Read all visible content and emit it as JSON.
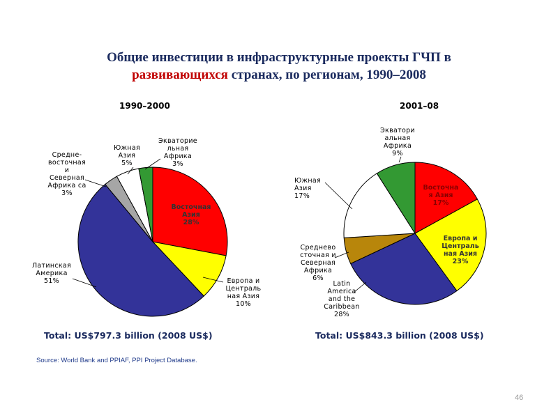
{
  "title": {
    "line1": "Общие инвестиции в инфраструктурные проекты ГЧП в",
    "line2_highlight": "развивающихся",
    "line2_rest": " странах, по регионам, 1990–2008"
  },
  "source": "Source: World Bank and PPIAF, PPI Project Database.",
  "page_number": "46",
  "chart_data": [
    {
      "type": "pie",
      "title": "1990–2000",
      "total": "Total: US$797.3 billion (2008 US$)",
      "slices": [
        {
          "label_lines": [
            "Восточная",
            "Азия",
            "28%"
          ],
          "value": 28,
          "color": "#ff0000"
        },
        {
          "label_lines": [
            "Европа и",
            "Централь",
            "ная Азия",
            "10%"
          ],
          "value": 10,
          "color": "#ffff00"
        },
        {
          "label_lines": [
            "Латинская",
            "Америка",
            "51%"
          ],
          "value": 51,
          "color": "#333399"
        },
        {
          "label_lines": [
            "Средне-",
            "восточная",
            "и",
            "Северная",
            "Африка са",
            "3%"
          ],
          "value": 3,
          "color": "#a6a6a6"
        },
        {
          "label_lines": [
            "Южная",
            "Азия",
            "5%"
          ],
          "value": 5,
          "color": "#ffffff"
        },
        {
          "label_lines": [
            "Экваторие",
            "льная",
            "Африка",
            "3%"
          ],
          "value": 3,
          "color": "#339933"
        }
      ]
    },
    {
      "type": "pie",
      "title": "2001–08",
      "total": "Total: US$843.3 billion (2008 US$)",
      "slices": [
        {
          "label_lines": [
            "Восточна",
            "я Азия",
            "17%"
          ],
          "value": 17,
          "color": "#ff0000"
        },
        {
          "label_lines": [
            "Европа и",
            "Централь",
            "ная Азия",
            "23%"
          ],
          "value": 23,
          "color": "#ffff00"
        },
        {
          "label_lines": [
            "Latin",
            "America",
            "and the",
            "Caribbean",
            "28%"
          ],
          "value": 28,
          "color": "#333399"
        },
        {
          "label_lines": [
            "Среднево",
            "сточная и",
            "Северная",
            "Африка",
            "6%"
          ],
          "value": 6,
          "color": "#b8860b"
        },
        {
          "label_lines": [
            "Южная",
            "Азия",
            "17%"
          ],
          "value": 17,
          "color": "#ffffff"
        },
        {
          "label_lines": [
            "Экватори",
            "альная",
            "Африка",
            "9%"
          ],
          "value": 9,
          "color": "#339933"
        }
      ]
    }
  ]
}
